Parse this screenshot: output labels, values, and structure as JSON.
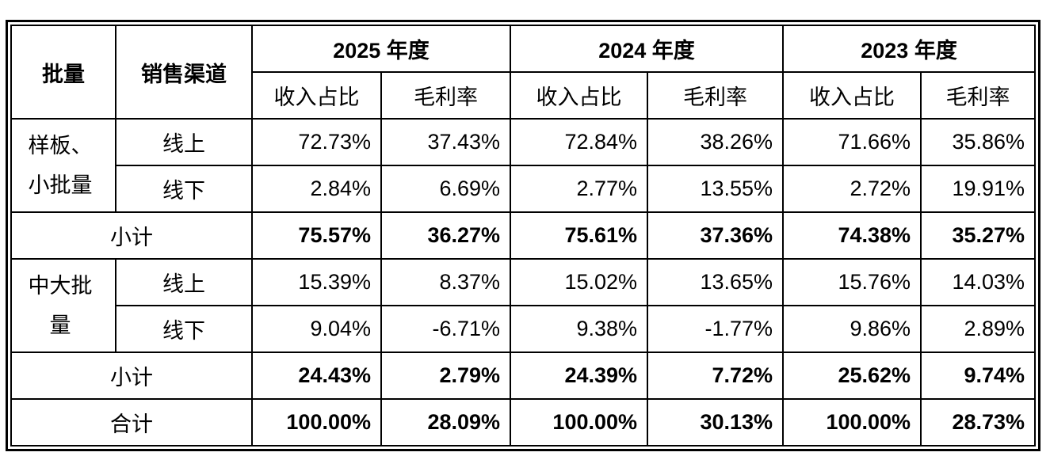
{
  "table": {
    "header": {
      "batch": "批量",
      "channel": "销售渠道",
      "years": [
        "2025 年度",
        "2024 年度",
        "2023 年度"
      ],
      "metrics": [
        "收入占比",
        "毛利率",
        "收入占比",
        "毛利率",
        "收入占比",
        "毛利率"
      ]
    },
    "groups": [
      {
        "label": [
          "样板、",
          "小批量"
        ],
        "rows": [
          {
            "channel": "线上",
            "values": [
              "72.73%",
              "37.43%",
              "72.84%",
              "38.26%",
              "71.66%",
              "35.86%"
            ]
          },
          {
            "channel": "线下",
            "values": [
              "2.84%",
              "6.69%",
              "2.77%",
              "13.55%",
              "2.72%",
              "19.91%"
            ]
          }
        ],
        "subtotal": {
          "label": "小计",
          "values": [
            "75.57%",
            "36.27%",
            "75.61%",
            "37.36%",
            "74.38%",
            "35.27%"
          ]
        }
      },
      {
        "label": [
          "中大批",
          "量"
        ],
        "rows": [
          {
            "channel": "线上",
            "values": [
              "15.39%",
              "8.37%",
              "15.02%",
              "13.65%",
              "15.76%",
              "14.03%"
            ]
          },
          {
            "channel": "线下",
            "values": [
              "9.04%",
              "-6.71%",
              "9.38%",
              "-1.77%",
              "9.86%",
              "2.89%"
            ]
          }
        ],
        "subtotal": {
          "label": "小计",
          "values": [
            "24.43%",
            "2.79%",
            "24.39%",
            "7.72%",
            "25.62%",
            "9.74%"
          ]
        }
      }
    ],
    "total": {
      "label": "合计",
      "values": [
        "100.00%",
        "28.09%",
        "100.00%",
        "30.13%",
        "100.00%",
        "28.73%"
      ]
    }
  }
}
